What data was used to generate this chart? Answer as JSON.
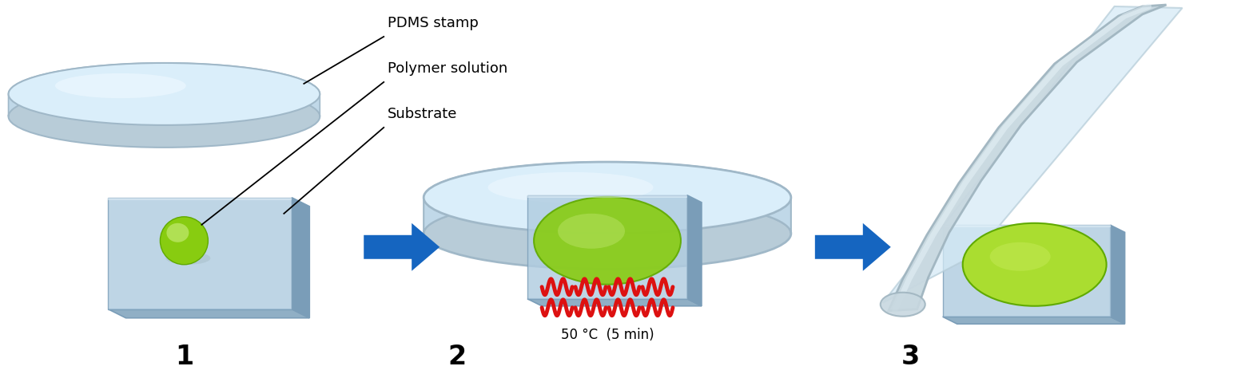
{
  "labels": {
    "pdms_stamp": "PDMS stamp",
    "polymer_solution": "Polymer solution",
    "substrate": "Substrate",
    "step1": "1",
    "step2": "2",
    "step3": "3",
    "temperature": "50 °C  (5 min)"
  },
  "colors": {
    "pdms_top": "#daeefa",
    "pdms_mid": "#c0d8e8",
    "pdms_rim": "#b8ccd8",
    "pdms_edge": "#a0b8c8",
    "pdms_highlight": "#eef8ff",
    "sub_top": "#b0cce0",
    "sub_side": "#7a9db8",
    "sub_bottom": "#90afc5",
    "sub_shadow": "#c8d8e4",
    "green_bright": "#aadd30",
    "green_mid": "#88cc10",
    "green_dark": "#60aa00",
    "green_light": "#ccee80",
    "arrow_blue": "#1565c0",
    "zigzag_red": "#dd1111",
    "text_black": "#000000",
    "white": "#ffffff",
    "peeling_inner": "#d5eaf6",
    "peeling_edge": "#b5ccd8",
    "peeling_rod": "#c8d8e0",
    "peeling_rod_dark": "#a0b5c0"
  },
  "figure_size": [
    15.68,
    4.69
  ],
  "dpi": 100
}
